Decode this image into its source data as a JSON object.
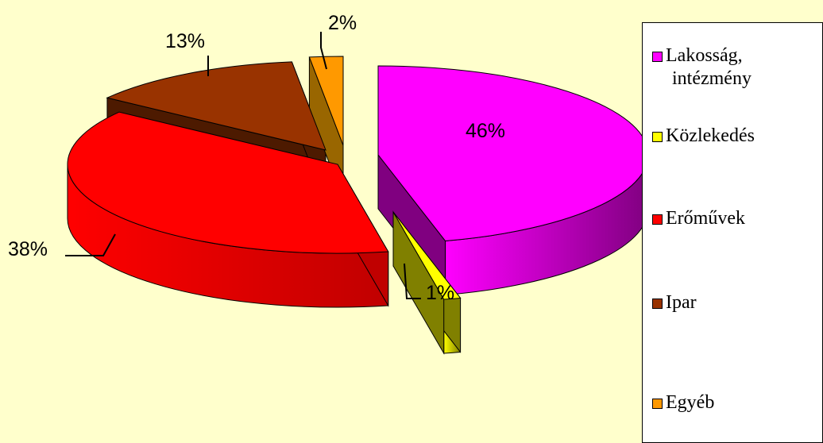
{
  "chart_data": {
    "type": "pie",
    "three_d": true,
    "exploded": true,
    "legend_position": "right",
    "slices": [
      {
        "label": "Lakosság, intézmény",
        "label_lines": [
          "Lakosság,",
          "intézmény"
        ],
        "value": 46,
        "display": "46%",
        "color": "#FF00FF",
        "side_color": "#800080"
      },
      {
        "label": "Közlekedés",
        "label_lines": [
          "Közlekedés"
        ],
        "value": 1,
        "display": "1%",
        "color": "#FFFF00",
        "side_color": "#808000"
      },
      {
        "label": "Erőművek",
        "label_lines": [
          "Erőművek"
        ],
        "value": 38,
        "display": "38%",
        "color": "#FF0000",
        "side_color": "#C00000"
      },
      {
        "label": "Ipar",
        "label_lines": [
          "Ipar"
        ],
        "value": 13,
        "display": "13%",
        "color": "#993300",
        "side_color": "#4D1A00"
      },
      {
        "label": "Egyéb",
        "label_lines": [
          "Egyéb"
        ],
        "value": 2,
        "display": "2%",
        "color": "#FF9900",
        "side_color": "#996600"
      }
    ]
  }
}
